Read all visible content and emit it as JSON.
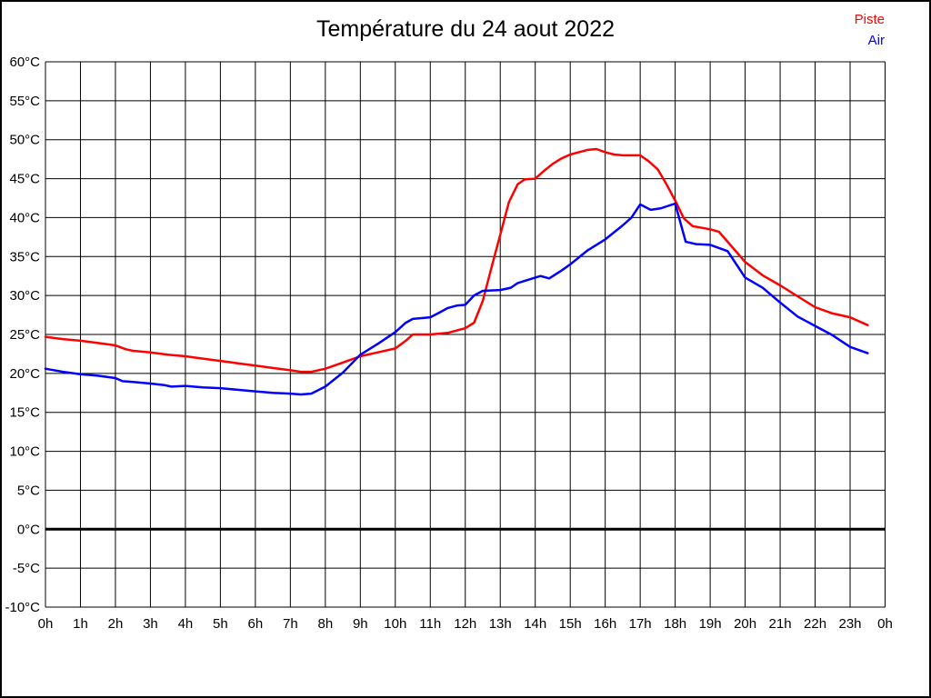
{
  "chart_data": {
    "type": "line",
    "title": "Température du 24 aout 2022",
    "x_axis": {
      "tick_labels": [
        "0h",
        "1h",
        "2h",
        "3h",
        "4h",
        "5h",
        "6h",
        "7h",
        "8h",
        "9h",
        "10h",
        "11h",
        "12h",
        "13h",
        "14h",
        "15h",
        "16h",
        "17h",
        "18h",
        "19h",
        "20h",
        "21h",
        "22h",
        "23h",
        "0h"
      ],
      "min_hours": 0,
      "max_hours": 24
    },
    "y_axis": {
      "tick_labels": [
        "60°C",
        "55°C",
        "50°C",
        "45°C",
        "40°C",
        "35°C",
        "30°C",
        "25°C",
        "20°C",
        "15°C",
        "10°C",
        "5°C",
        "0°C",
        "-5°C",
        "-10°C"
      ],
      "min": -10,
      "max": 60,
      "step": 5,
      "unit": "°C"
    },
    "grid": true,
    "zero_line_bold": true,
    "legend_position": "top-right",
    "series": [
      {
        "name": "Piste",
        "color": "#ff0000",
        "points": [
          [
            0,
            24.7
          ],
          [
            0.5,
            24.4
          ],
          [
            1,
            24.2
          ],
          [
            1.5,
            23.9
          ],
          [
            2,
            23.6
          ],
          [
            2.3,
            23.1
          ],
          [
            2.5,
            22.9
          ],
          [
            3,
            22.7
          ],
          [
            3.5,
            22.4
          ],
          [
            4,
            22.2
          ],
          [
            4.5,
            21.9
          ],
          [
            5,
            21.6
          ],
          [
            5.5,
            21.3
          ],
          [
            6,
            21.0
          ],
          [
            6.5,
            20.7
          ],
          [
            7,
            20.4
          ],
          [
            7.3,
            20.2
          ],
          [
            7.6,
            20.2
          ],
          [
            8,
            20.6
          ],
          [
            8.5,
            21.4
          ],
          [
            9,
            22.2
          ],
          [
            9.5,
            22.7
          ],
          [
            10,
            23.2
          ],
          [
            10.3,
            24.2
          ],
          [
            10.5,
            25.0
          ],
          [
            11,
            25.0
          ],
          [
            11.5,
            25.2
          ],
          [
            12,
            25.8
          ],
          [
            12.25,
            26.5
          ],
          [
            12.5,
            29.3
          ],
          [
            12.75,
            33.6
          ],
          [
            13,
            37.8
          ],
          [
            13.25,
            42.0
          ],
          [
            13.5,
            44.3
          ],
          [
            13.7,
            44.9
          ],
          [
            14,
            45.0
          ],
          [
            14.25,
            46.0
          ],
          [
            14.5,
            46.9
          ],
          [
            14.75,
            47.6
          ],
          [
            15,
            48.1
          ],
          [
            15.5,
            48.7
          ],
          [
            15.75,
            48.8
          ],
          [
            16,
            48.4
          ],
          [
            16.25,
            48.1
          ],
          [
            16.5,
            48.0
          ],
          [
            17,
            48.0
          ],
          [
            17.25,
            47.2
          ],
          [
            17.5,
            46.2
          ],
          [
            17.75,
            44.3
          ],
          [
            18,
            42.2
          ],
          [
            18.25,
            39.9
          ],
          [
            18.5,
            38.9
          ],
          [
            19,
            38.5
          ],
          [
            19.25,
            38.2
          ],
          [
            19.5,
            36.9
          ],
          [
            20,
            34.3
          ],
          [
            20.5,
            32.6
          ],
          [
            21,
            31.3
          ],
          [
            21.5,
            29.9
          ],
          [
            22,
            28.5
          ],
          [
            22.5,
            27.7
          ],
          [
            23,
            27.2
          ],
          [
            23.5,
            26.2
          ]
        ]
      },
      {
        "name": "Air",
        "color": "#0000ff",
        "points": [
          [
            0,
            20.6
          ],
          [
            0.5,
            20.2
          ],
          [
            1,
            19.9
          ],
          [
            1.5,
            19.7
          ],
          [
            2,
            19.4
          ],
          [
            2.2,
            19.0
          ],
          [
            2.5,
            18.9
          ],
          [
            3,
            18.7
          ],
          [
            3.4,
            18.5
          ],
          [
            3.6,
            18.3
          ],
          [
            4,
            18.4
          ],
          [
            4.5,
            18.2
          ],
          [
            5,
            18.1
          ],
          [
            5.5,
            17.9
          ],
          [
            6,
            17.7
          ],
          [
            6.5,
            17.5
          ],
          [
            7,
            17.4
          ],
          [
            7.3,
            17.3
          ],
          [
            7.6,
            17.4
          ],
          [
            8,
            18.3
          ],
          [
            8.5,
            20.1
          ],
          [
            9,
            22.4
          ],
          [
            9.5,
            23.8
          ],
          [
            10,
            25.3
          ],
          [
            10.3,
            26.5
          ],
          [
            10.5,
            27.0
          ],
          [
            11,
            27.2
          ],
          [
            11.3,
            27.9
          ],
          [
            11.5,
            28.4
          ],
          [
            11.75,
            28.7
          ],
          [
            12,
            28.8
          ],
          [
            12.25,
            30.0
          ],
          [
            12.5,
            30.6
          ],
          [
            13,
            30.7
          ],
          [
            13.3,
            31.0
          ],
          [
            13.5,
            31.6
          ],
          [
            14,
            32.3
          ],
          [
            14.15,
            32.5
          ],
          [
            14.4,
            32.2
          ],
          [
            14.75,
            33.2
          ],
          [
            15,
            34.0
          ],
          [
            15.5,
            35.8
          ],
          [
            16,
            37.2
          ],
          [
            16.5,
            39.0
          ],
          [
            16.75,
            40.0
          ],
          [
            17,
            41.7
          ],
          [
            17.3,
            41.0
          ],
          [
            17.6,
            41.2
          ],
          [
            18,
            41.8
          ],
          [
            18.3,
            36.9
          ],
          [
            18.6,
            36.6
          ],
          [
            19,
            36.5
          ],
          [
            19.5,
            35.7
          ],
          [
            19.75,
            34.0
          ],
          [
            20,
            32.3
          ],
          [
            20.5,
            31.0
          ],
          [
            21,
            29.1
          ],
          [
            21.5,
            27.3
          ],
          [
            22,
            26.1
          ],
          [
            22.5,
            24.9
          ],
          [
            23,
            23.4
          ],
          [
            23.5,
            22.6
          ]
        ]
      }
    ]
  }
}
